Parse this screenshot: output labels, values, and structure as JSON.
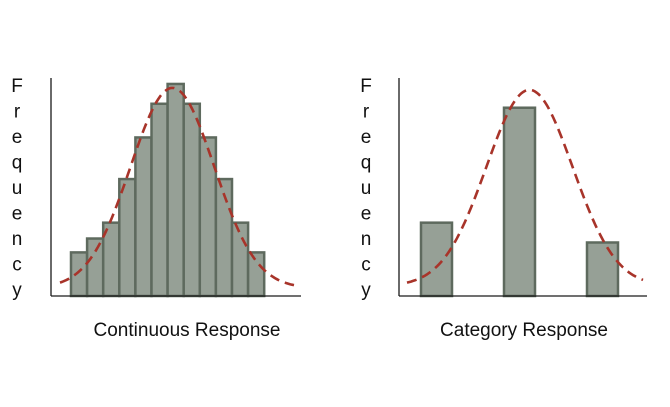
{
  "chart_data": [
    {
      "type": "bar",
      "variant": "histogram",
      "xlabel": "Continuous Response",
      "ylabel": "Frequency",
      "bins": 12,
      "values": [
        22,
        29,
        37,
        59,
        80,
        97,
        107,
        97,
        80,
        59,
        37,
        22
      ],
      "ylim": [
        0,
        110
      ],
      "overlay_curve": {
        "shape": "normal",
        "line_style": "dashed",
        "peak": 101,
        "center_bin": 6.3,
        "sd_bins": 2.6
      },
      "grid": false,
      "colors": {
        "bar_fill": "#96a096",
        "bar_edge": "#5e6a5e",
        "curve": "#a8342a",
        "axis": "#1a1a1a"
      }
    },
    {
      "type": "bar",
      "xlabel": "Category Response",
      "ylabel": "Frequency",
      "categories": [
        "",
        "",
        ""
      ],
      "values": [
        37,
        95,
        27
      ],
      "ylim": [
        0,
        110
      ],
      "overlay_curve": {
        "shape": "normal",
        "line_style": "dashed",
        "peak": 99,
        "center": 1.12,
        "sd": 0.52
      },
      "grid": false,
      "colors": {
        "bar_fill": "#96a096",
        "bar_edge": "#5e6a5e",
        "curve": "#a8342a",
        "axis": "#1a1a1a"
      }
    }
  ]
}
